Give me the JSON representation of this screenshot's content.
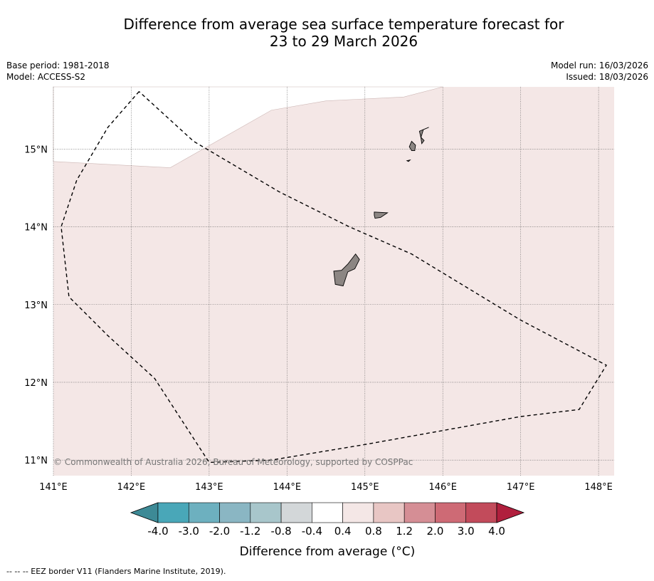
{
  "title": {
    "line1": "Difference from average sea surface temperature forecast for",
    "line2": "23 to 29 March 2026"
  },
  "meta": {
    "base_period": "Base period: 1981-2018",
    "model": "Model: ACCESS-S2",
    "model_run": "Model run: 16/03/2026",
    "issued": "Issued: 18/03/2026"
  },
  "map": {
    "lon_range": [
      141.0,
      148.2
    ],
    "lat_range": [
      10.8,
      15.8
    ],
    "lon_ticks": [
      {
        "value": 141,
        "label": "141°E"
      },
      {
        "value": 142,
        "label": "142°E"
      },
      {
        "value": 143,
        "label": "143°E"
      },
      {
        "value": 144,
        "label": "144°E"
      },
      {
        "value": 145,
        "label": "145°E"
      },
      {
        "value": 146,
        "label": "146°E"
      },
      {
        "value": 147,
        "label": "147°E"
      },
      {
        "value": 148,
        "label": "148°E"
      }
    ],
    "lat_ticks": [
      {
        "value": 15,
        "label": "15°N"
      },
      {
        "value": 14,
        "label": "14°N"
      },
      {
        "value": 13,
        "label": "13°N"
      },
      {
        "value": 12,
        "label": "12°N"
      },
      {
        "value": 11,
        "label": "11°N"
      }
    ],
    "anomaly_fill_color": "#f4e7e6",
    "land_color": "#8c8683",
    "unshaded_region": [
      [
        141.0,
        15.8
      ],
      [
        141.0,
        14.84
      ],
      [
        142.5,
        14.76
      ],
      [
        143.8,
        15.5
      ],
      [
        144.5,
        15.62
      ],
      [
        145.5,
        15.67
      ],
      [
        146.0,
        15.8
      ]
    ],
    "eez_border": [
      [
        142.1,
        15.74
      ],
      [
        141.7,
        15.28
      ],
      [
        141.3,
        14.6
      ],
      [
        141.1,
        14.0
      ],
      [
        141.2,
        13.1
      ],
      [
        141.7,
        12.6
      ],
      [
        142.3,
        12.05
      ],
      [
        143.0,
        10.97
      ],
      [
        143.8,
        11.0
      ],
      [
        145.0,
        11.2
      ],
      [
        146.0,
        11.38
      ],
      [
        147.0,
        11.56
      ],
      [
        147.75,
        11.65
      ],
      [
        148.1,
        12.22
      ],
      [
        147.0,
        12.8
      ],
      [
        145.6,
        13.65
      ],
      [
        144.8,
        14.0
      ],
      [
        143.9,
        14.45
      ],
      [
        142.8,
        15.1
      ],
      [
        142.1,
        15.74
      ]
    ],
    "islands": [
      {
        "name": "Guam",
        "coords": [
          [
            144.88,
            13.65
          ],
          [
            144.93,
            13.58
          ],
          [
            144.87,
            13.46
          ],
          [
            144.78,
            13.42
          ],
          [
            144.72,
            13.24
          ],
          [
            144.62,
            13.26
          ],
          [
            144.6,
            13.43
          ],
          [
            144.7,
            13.44
          ],
          [
            144.78,
            13.52
          ]
        ]
      },
      {
        "name": "Rota",
        "coords": [
          [
            145.12,
            14.19
          ],
          [
            145.29,
            14.18
          ],
          [
            145.2,
            14.12
          ],
          [
            145.13,
            14.11
          ],
          [
            145.12,
            14.15
          ]
        ]
      },
      {
        "name": "Tinian",
        "coords": [
          [
            145.6,
            15.1
          ],
          [
            145.65,
            15.05
          ],
          [
            145.64,
            14.98
          ],
          [
            145.6,
            14.98
          ],
          [
            145.57,
            15.03
          ]
        ]
      },
      {
        "name": "Saipan",
        "coords": [
          [
            145.82,
            15.28
          ],
          [
            145.75,
            15.25
          ],
          [
            145.72,
            15.15
          ],
          [
            145.76,
            15.11
          ],
          [
            145.73,
            15.07
          ],
          [
            145.72,
            15.14
          ],
          [
            145.7,
            15.23
          ]
        ]
      },
      {
        "name": "Aguijan",
        "coords": [
          [
            145.54,
            14.85
          ],
          [
            145.58,
            14.86
          ],
          [
            145.56,
            14.84
          ]
        ]
      }
    ],
    "copyright": "© Commonwealth of Australia 2026, Bureau of Meteorology, supported by COSPPac"
  },
  "colorbar": {
    "title": "Difference from average (°C)",
    "ticks": [
      "-4.0",
      "-3.0",
      "-2.0",
      "-1.2",
      "-0.8",
      "-0.4",
      "0.4",
      "0.8",
      "1.2",
      "2.0",
      "3.0",
      "4.0"
    ],
    "low_extend_color": "#3d8a96",
    "high_extend_color": "#b01f3d",
    "colors": [
      "#49a7b8",
      "#6db0bf",
      "#8ab6c3",
      "#a8c6cb",
      "#d3d7d9",
      "#ffffff",
      "#f4e7e6",
      "#e8c6c4",
      "#d58e95",
      "#ce6a75",
      "#c24b5b"
    ]
  },
  "footnote": "--  --  -- EEZ border V11 (Flanders Marine Institute, 2019)."
}
